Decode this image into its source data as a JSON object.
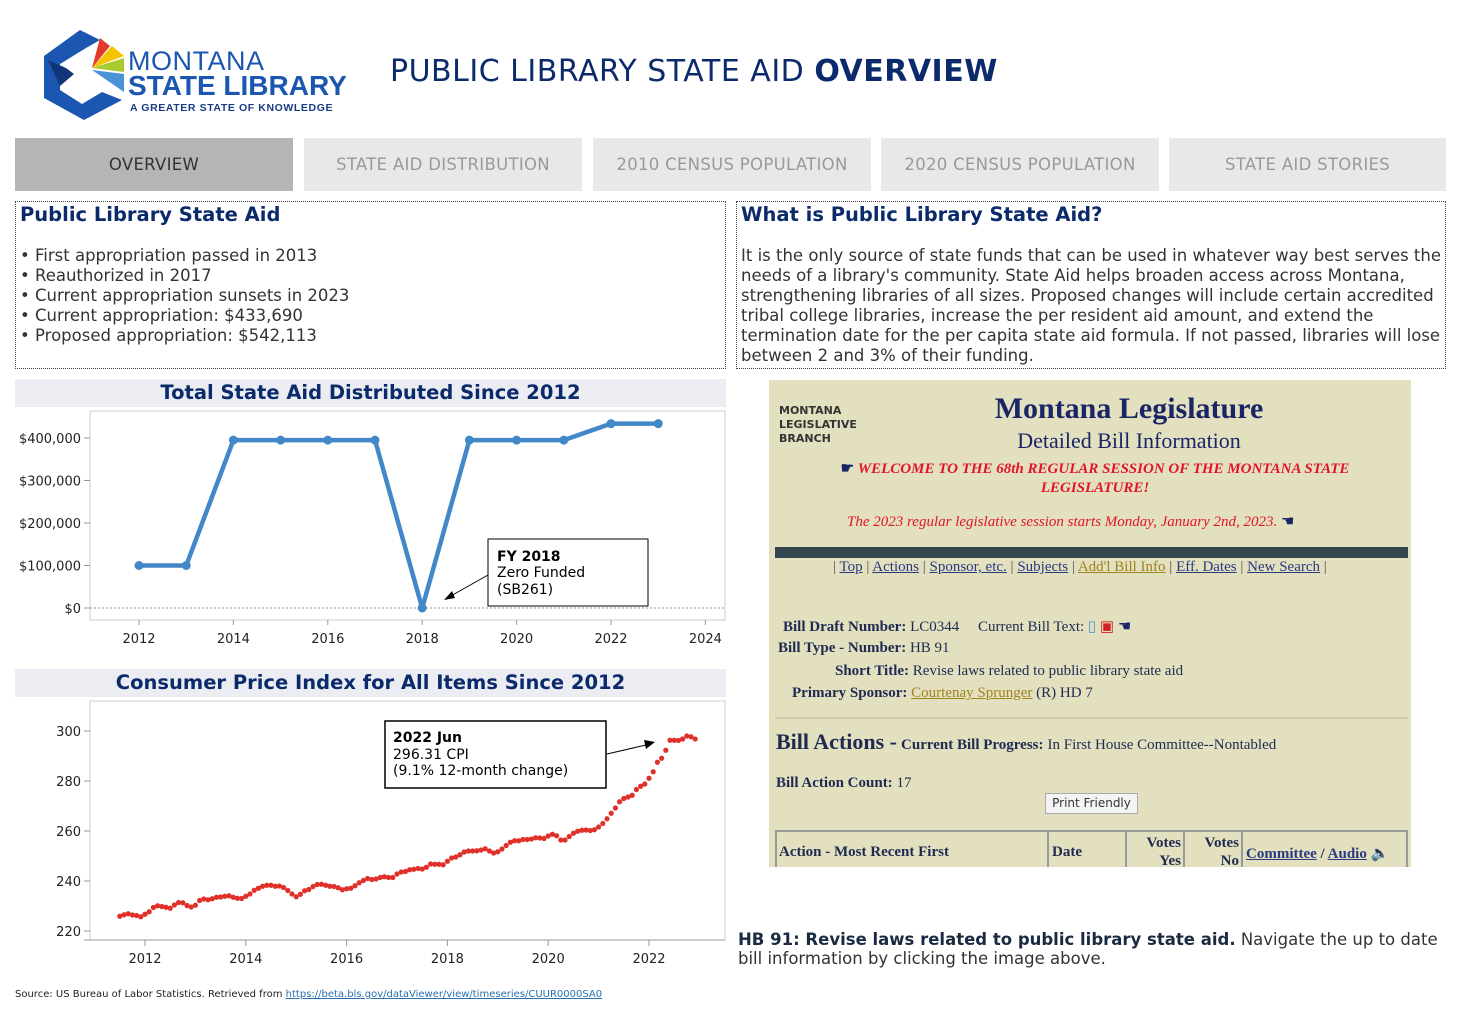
{
  "header": {
    "logo": {
      "line1": "MONTANA",
      "line2": "STATE LIBRARY",
      "tagline": "A GREATER STATE OF KNOWLEDGE"
    },
    "title_regular": "PUBLIC LIBRARY STATE AID ",
    "title_bold": "OVERVIEW"
  },
  "tabs": [
    {
      "label": "OVERVIEW",
      "active": true
    },
    {
      "label": "STATE AID DISTRIBUTION"
    },
    {
      "label": "2010 CENSUS POPULATION"
    },
    {
      "label": "2020 CENSUS POPULATION"
    },
    {
      "label": "STATE AID STORIES"
    }
  ],
  "left_box": {
    "title": "Public Library State Aid",
    "bullets": [
      "First appropriation passed in 2013",
      "Reauthorized in 2017",
      "Current appropriation sunsets in 2023",
      "Current appropriation: $433,690",
      "Proposed appropriation: $542,113"
    ]
  },
  "right_box": {
    "title": "What is Public Library State Aid?",
    "text": "It is the only source of state funds that can be used in whatever way best serves the needs of a library's community. State Aid helps broaden access across Montana, strengthening libraries of all sizes. Proposed changes will include certain accredited tribal college libraries, increase the per resident aid amount, and extend the termination date for the per capita state aid formula. If not passed, libraries will lose between 2 and 3% of their funding."
  },
  "chart_data": [
    {
      "type": "line",
      "title": "Total State Aid Distributed Since 2012",
      "color": "#4287c8",
      "x": [
        2012,
        2013,
        2014,
        2015,
        2016,
        2017,
        2018,
        2019,
        2020,
        2021,
        2022,
        2023
      ],
      "values": [
        100000,
        100000,
        395000,
        395000,
        395000,
        395000,
        0,
        395000,
        395000,
        395000,
        433690,
        433690
      ],
      "xlim": [
        2011,
        2024
      ],
      "ylim": [
        -25000,
        460000
      ],
      "xticks": [
        "2012",
        "2014",
        "2016",
        "2018",
        "2020",
        "2022",
        "2024"
      ],
      "yticks": [
        "$0",
        "$100,000",
        "$200,000",
        "$300,000",
        "$400,000"
      ],
      "annotation": {
        "title": "FY 2018",
        "line1": "Zero Funded",
        "line2": "(SB261)"
      }
    },
    {
      "type": "scatter",
      "title": "Consumer Price Index for All Items Since 2012",
      "color": "#e0302a",
      "xticks": [
        "2012",
        "2014",
        "2016",
        "2018",
        "2020",
        "2022"
      ],
      "yticks": [
        "220",
        "240",
        "260",
        "280",
        "300"
      ],
      "ylim": [
        220,
        311
      ],
      "monthly": {
        "2011": {
          "from": "Jul",
          "values": [
            225.9,
            226.5,
            226.9,
            226.4,
            226.2,
            225.7
          ]
        },
        "2012": {
          "from": "Jan",
          "values": [
            226.7,
            227.7,
            229.4,
            230.1,
            229.8,
            229.5,
            229.1,
            230.4,
            231.4,
            231.3,
            230.2,
            229.6
          ]
        },
        "2013": {
          "from": "Jan",
          "values": [
            230.3,
            232.2,
            232.8,
            232.5,
            232.9,
            233.5,
            233.6,
            233.9,
            234.1,
            233.5,
            233.1,
            233.0
          ]
        },
        "2014": {
          "from": "Jan",
          "values": [
            233.9,
            234.8,
            236.3,
            237.1,
            237.9,
            238.3,
            238.3,
            237.9,
            238.0,
            237.4,
            236.2,
            234.8
          ]
        },
        "2015": {
          "from": "Jan",
          "values": [
            233.7,
            234.7,
            236.1,
            236.6,
            237.8,
            238.6,
            238.7,
            238.3,
            237.9,
            237.8,
            237.3,
            236.5
          ]
        },
        "2016": {
          "from": "Jan",
          "values": [
            236.9,
            237.1,
            238.1,
            239.3,
            240.2,
            241.0,
            240.6,
            240.8,
            241.4,
            241.7,
            241.4,
            241.4
          ]
        },
        "2017": {
          "from": "Jan",
          "values": [
            242.8,
            243.6,
            243.8,
            244.5,
            244.7,
            245.0,
            244.8,
            245.5,
            246.8,
            246.7,
            246.7,
            246.5
          ]
        },
        "2018": {
          "from": "Jan",
          "values": [
            247.9,
            249.2,
            249.6,
            250.5,
            251.6,
            252.0,
            252.0,
            252.1,
            252.4,
            252.9,
            252.0,
            251.2
          ]
        },
        "2019": {
          "from": "Jan",
          "values": [
            251.7,
            252.8,
            254.2,
            255.5,
            256.1,
            256.1,
            256.6,
            256.6,
            256.8,
            257.3,
            257.2,
            257.0
          ]
        },
        "2020": {
          "from": "Jan",
          "values": [
            258.0,
            258.7,
            258.1,
            256.4,
            256.4,
            257.8,
            259.1,
            259.9,
            260.3,
            260.4,
            260.2,
            260.5
          ]
        },
        "2021": {
          "from": "Jan",
          "values": [
            261.6,
            263.0,
            264.9,
            267.1,
            269.2,
            271.7,
            273.0,
            273.6,
            274.3,
            276.6,
            277.9,
            278.8
          ]
        },
        "2022": {
          "from": "Jan",
          "values": [
            281.1,
            283.7,
            287.5,
            289.1,
            292.3,
            296.3,
            296.3,
            296.2,
            296.8,
            298.0,
            297.7,
            296.8
          ]
        }
      },
      "annotation": {
        "title": "2022 Jun",
        "line1": "296.31 CPI",
        "line2": "(9.1% 12-month change)"
      }
    }
  ],
  "legislature": {
    "branch": [
      "MONTANA",
      "LEGISLATIVE",
      "BRANCH"
    ],
    "title": "Montana Legislature",
    "subtitle": "Detailed Bill Information",
    "welcome": "WELCOME TO THE 68th REGULAR SESSION OF THE MONTANA STATE LEGISLATURE!",
    "session": "The 2023 regular legislative session starts Monday, January 2nd, 2023.",
    "nav": [
      "Top",
      "Actions",
      "Sponsor, etc.",
      "Subjects",
      "Add'l Bill Info",
      "Eff. Dates",
      "New Search"
    ],
    "draft_label": "Bill Draft Number:",
    "draft": "LC0344",
    "text_label": "Current Bill Text:",
    "type_label": "Bill Type - Number:",
    "type": "HB 91",
    "short_label": "Short Title:",
    "short": "Revise laws related to public library state aid",
    "sponsor_label": "Primary Sponsor:",
    "sponsor": "Courtenay Sprunger",
    "sponsor_suffix": "(R) HD 7",
    "actions_title": "Bill Actions -",
    "progress_label": "Current Bill Progress:",
    "progress": "In First House Committee--Nontabled",
    "count_label": "Bill Action Count:",
    "count": "17",
    "print": "Print Friendly",
    "table_headers": [
      "Action - Most Recent First",
      "Date",
      "Votes Yes",
      "Votes No",
      "Committee",
      "Audio"
    ]
  },
  "caption": {
    "bold": "HB 91: Revise laws related to public library state aid.",
    "text": " Navigate the up to date bill information by clicking the image above."
  },
  "source": {
    "text": "Source: US Bureau of Labor Statistics. Retrieved from ",
    "link": "https://beta.bls.gov/dataViewer/view/timeseries/CUUR0000SA0"
  }
}
